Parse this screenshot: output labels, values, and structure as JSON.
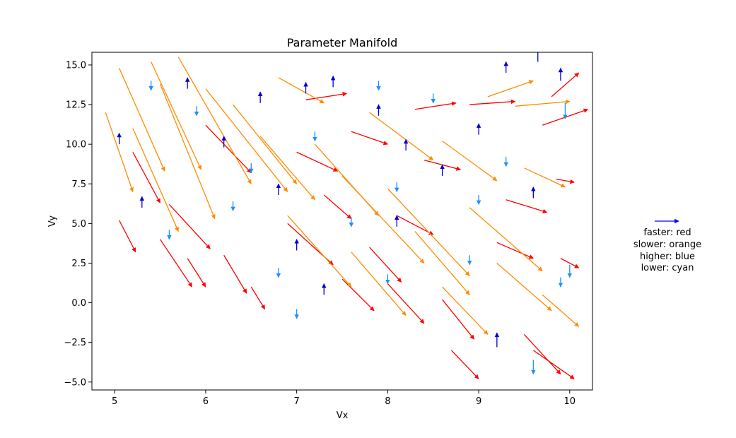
{
  "chart_data": {
    "type": "quiver",
    "title": "Parameter Manifold",
    "xlabel": "Vx",
    "ylabel": "Vy",
    "xlim": [
      4.75,
      10.25
    ],
    "ylim": [
      -5.5,
      15.8
    ],
    "xticks": [
      5,
      6,
      7,
      8,
      9,
      10
    ],
    "yticks": [
      -5.0,
      -2.5,
      0.0,
      2.5,
      5.0,
      7.5,
      10.0,
      12.5,
      15.0
    ],
    "xtick_labels": [
      "5",
      "6",
      "7",
      "8",
      "9",
      "10"
    ],
    "ytick_labels": [
      "−5.0",
      "−2.5",
      "0.0",
      "2.5",
      "5.0",
      "7.5",
      "10.0",
      "12.5",
      "15.0"
    ],
    "grid": false,
    "legend_placement": "right",
    "series_colors": {
      "faster": "#ff0000",
      "slower": "#ff8c00",
      "higher": "#0000cd",
      "lower": "#1e90ff"
    },
    "legend": {
      "arrow_color": "#0000ff",
      "lines": [
        "faster: red",
        "slower: orange",
        "higher: blue",
        "lower: cyan"
      ]
    },
    "field_note": "Dense vector field on a roughly uniform grid over Vx 5–10, Vy −5–15; arrows in the 'faster'/'slower' families point down-right with slope about −2 to −3 and lengths up to ~0.5 in Vx; 'higher'/'lower' arrows are short vertical arrows pointing up/down.",
    "series": [
      {
        "name": "faster: red",
        "color": "#ff0000",
        "arrows": [
          {
            "x": 5.05,
            "y": 5.2,
            "u": 0.18,
            "v": -2.0
          },
          {
            "x": 5.2,
            "y": 9.5,
            "u": 0.3,
            "v": -3.2
          },
          {
            "x": 5.5,
            "y": 4.0,
            "u": 0.35,
            "v": -3.0
          },
          {
            "x": 5.8,
            "y": 2.8,
            "u": 0.2,
            "v": -1.8
          },
          {
            "x": 6.2,
            "y": 3.0,
            "u": 0.25,
            "v": -2.4
          },
          {
            "x": 6.5,
            "y": 1.0,
            "u": 0.15,
            "v": -1.4
          },
          {
            "x": 7.1,
            "y": 12.8,
            "u": 0.45,
            "v": 0.4
          },
          {
            "x": 7.3,
            "y": 6.8,
            "u": 0.3,
            "v": -1.5
          },
          {
            "x": 7.6,
            "y": 10.8,
            "u": 0.4,
            "v": -0.8
          },
          {
            "x": 7.8,
            "y": 3.5,
            "u": 0.35,
            "v": -2.2
          },
          {
            "x": 8.1,
            "y": 5.5,
            "u": 0.4,
            "v": -1.2
          },
          {
            "x": 8.4,
            "y": 9.0,
            "u": 0.4,
            "v": -0.6
          },
          {
            "x": 8.6,
            "y": 0.2,
            "u": 0.35,
            "v": -2.5
          },
          {
            "x": 8.9,
            "y": 12.5,
            "u": 0.5,
            "v": 0.2
          },
          {
            "x": 9.2,
            "y": 3.8,
            "u": 0.4,
            "v": -1.0
          },
          {
            "x": 9.5,
            "y": -2.0,
            "u": 0.4,
            "v": -2.5
          },
          {
            "x": 9.7,
            "y": 11.2,
            "u": 0.5,
            "v": 1.0
          },
          {
            "x": 9.8,
            "y": 13.0,
            "u": 0.3,
            "v": 1.5
          },
          {
            "x": 9.85,
            "y": 7.8,
            "u": 0.2,
            "v": -0.2
          },
          {
            "x": 9.6,
            "y": -3.0,
            "u": 0.45,
            "v": -1.8
          },
          {
            "x": 8.7,
            "y": -3.0,
            "u": 0.3,
            "v": -1.8
          },
          {
            "x": 9.9,
            "y": 2.8,
            "u": 0.2,
            "v": -0.6
          },
          {
            "x": 5.6,
            "y": 6.2,
            "u": 0.45,
            "v": -2.8
          },
          {
            "x": 6.9,
            "y": 5.0,
            "u": 0.5,
            "v": -2.6
          },
          {
            "x": 7.5,
            "y": 1.5,
            "u": 0.35,
            "v": -2.0
          },
          {
            "x": 6.0,
            "y": 11.2,
            "u": 0.5,
            "v": -3.0
          },
          {
            "x": 8.3,
            "y": 12.2,
            "u": 0.45,
            "v": 0.4
          },
          {
            "x": 7.0,
            "y": 9.5,
            "u": 0.45,
            "v": -1.2
          },
          {
            "x": 8.0,
            "y": 1.2,
            "u": 0.4,
            "v": -2.5
          },
          {
            "x": 9.3,
            "y": 6.5,
            "u": 0.45,
            "v": -0.8
          }
        ]
      },
      {
        "name": "slower: orange",
        "color": "#ff8c00",
        "arrows": [
          {
            "x": 4.9,
            "y": 12.0,
            "u": 0.3,
            "v": -5.0
          },
          {
            "x": 5.05,
            "y": 14.8,
            "u": 0.5,
            "v": -6.5
          },
          {
            "x": 5.4,
            "y": 15.2,
            "u": 0.55,
            "v": -6.8
          },
          {
            "x": 5.7,
            "y": 15.5,
            "u": 0.8,
            "v": -8.0
          },
          {
            "x": 6.0,
            "y": 13.5,
            "u": 0.9,
            "v": -6.5
          },
          {
            "x": 6.3,
            "y": 12.5,
            "u": 0.7,
            "v": -5.0
          },
          {
            "x": 6.6,
            "y": 10.5,
            "u": 0.6,
            "v": -4.0
          },
          {
            "x": 6.8,
            "y": 14.2,
            "u": 0.5,
            "v": -1.6
          },
          {
            "x": 7.2,
            "y": 10.0,
            "u": 0.7,
            "v": -4.5
          },
          {
            "x": 7.5,
            "y": 8.0,
            "u": 0.9,
            "v": -5.5
          },
          {
            "x": 7.8,
            "y": 12.0,
            "u": 0.7,
            "v": -3.0
          },
          {
            "x": 8.0,
            "y": 7.2,
            "u": 0.9,
            "v": -5.5
          },
          {
            "x": 8.3,
            "y": 4.5,
            "u": 0.6,
            "v": -4.0
          },
          {
            "x": 8.6,
            "y": 10.2,
            "u": 0.6,
            "v": -2.5
          },
          {
            "x": 8.9,
            "y": 6.0,
            "u": 0.8,
            "v": -4.0
          },
          {
            "x": 9.2,
            "y": 2.5,
            "u": 0.6,
            "v": -3.0
          },
          {
            "x": 9.5,
            "y": 8.5,
            "u": 0.45,
            "v": -1.2
          },
          {
            "x": 9.7,
            "y": 0.5,
            "u": 0.4,
            "v": -2.0
          },
          {
            "x": 9.1,
            "y": 13.0,
            "u": 0.5,
            "v": 1.0
          },
          {
            "x": 9.4,
            "y": 12.4,
            "u": 0.6,
            "v": 0.3
          },
          {
            "x": 5.2,
            "y": 11.0,
            "u": 0.5,
            "v": -6.5
          },
          {
            "x": 5.5,
            "y": 13.8,
            "u": 0.6,
            "v": -8.5
          },
          {
            "x": 6.9,
            "y": 5.5,
            "u": 0.7,
            "v": -4.5
          },
          {
            "x": 7.6,
            "y": 3.2,
            "u": 0.6,
            "v": -4.0
          },
          {
            "x": 8.6,
            "y": 1.0,
            "u": 0.5,
            "v": -3.0
          }
        ]
      },
      {
        "name": "higher: blue",
        "color": "#0000cd",
        "arrows": [
          {
            "x": 5.05,
            "y": 10.0,
            "u": 0,
            "v": 0.7
          },
          {
            "x": 5.3,
            "y": 6.0,
            "u": 0,
            "v": 0.7
          },
          {
            "x": 5.8,
            "y": 13.5,
            "u": 0,
            "v": 0.7
          },
          {
            "x": 6.2,
            "y": 9.8,
            "u": 0,
            "v": 0.7
          },
          {
            "x": 6.6,
            "y": 12.6,
            "u": 0,
            "v": 0.7
          },
          {
            "x": 7.0,
            "y": 3.3,
            "u": 0,
            "v": 0.7
          },
          {
            "x": 7.1,
            "y": 13.2,
            "u": 0,
            "v": 0.7
          },
          {
            "x": 7.4,
            "y": 13.6,
            "u": 0,
            "v": 0.7
          },
          {
            "x": 7.9,
            "y": 11.8,
            "u": 0,
            "v": 0.7
          },
          {
            "x": 8.2,
            "y": 9.6,
            "u": 0,
            "v": 0.7
          },
          {
            "x": 8.6,
            "y": 8.0,
            "u": 0,
            "v": 0.7
          },
          {
            "x": 9.0,
            "y": 10.6,
            "u": 0,
            "v": 0.7
          },
          {
            "x": 9.3,
            "y": 14.5,
            "u": 0,
            "v": 0.7
          },
          {
            "x": 9.65,
            "y": 15.2,
            "u": 0,
            "v": 0.9
          },
          {
            "x": 9.9,
            "y": 14.0,
            "u": 0,
            "v": 0.8
          },
          {
            "x": 9.2,
            "y": -2.8,
            "u": 0,
            "v": 0.9
          },
          {
            "x": 7.3,
            "y": 0.5,
            "u": 0,
            "v": 0.7
          },
          {
            "x": 8.1,
            "y": 4.8,
            "u": 0,
            "v": 0.7
          },
          {
            "x": 6.8,
            "y": 6.8,
            "u": 0,
            "v": 0.7
          },
          {
            "x": 9.6,
            "y": 6.6,
            "u": 0,
            "v": 0.7
          }
        ]
      },
      {
        "name": "lower: cyan",
        "color": "#1e90ff",
        "arrows": [
          {
            "x": 5.4,
            "y": 14.0,
            "u": 0,
            "v": -0.6
          },
          {
            "x": 5.9,
            "y": 12.4,
            "u": 0,
            "v": -0.6
          },
          {
            "x": 6.3,
            "y": 6.4,
            "u": 0,
            "v": -0.6
          },
          {
            "x": 6.8,
            "y": 2.2,
            "u": 0,
            "v": -0.6
          },
          {
            "x": 7.2,
            "y": 10.8,
            "u": 0,
            "v": -0.6
          },
          {
            "x": 7.6,
            "y": 5.4,
            "u": 0,
            "v": -0.6
          },
          {
            "x": 8.1,
            "y": 7.6,
            "u": 0,
            "v": -0.6
          },
          {
            "x": 8.5,
            "y": 13.2,
            "u": 0,
            "v": -0.6
          },
          {
            "x": 8.9,
            "y": 3.0,
            "u": 0,
            "v": -0.6
          },
          {
            "x": 9.3,
            "y": 9.2,
            "u": 0,
            "v": -0.6
          },
          {
            "x": 9.6,
            "y": -3.6,
            "u": 0,
            "v": -0.9
          },
          {
            "x": 9.9,
            "y": 1.6,
            "u": 0,
            "v": -0.6
          },
          {
            "x": 10.0,
            "y": 2.4,
            "u": 0,
            "v": -0.8
          },
          {
            "x": 9.95,
            "y": 12.6,
            "u": 0,
            "v": -1.0
          },
          {
            "x": 8.0,
            "y": 1.8,
            "u": 0,
            "v": -0.6
          },
          {
            "x": 6.5,
            "y": 8.8,
            "u": 0,
            "v": -0.6
          },
          {
            "x": 5.6,
            "y": 4.6,
            "u": 0,
            "v": -0.6
          },
          {
            "x": 7.9,
            "y": 14.0,
            "u": 0,
            "v": -0.6
          },
          {
            "x": 9.0,
            "y": 6.8,
            "u": 0,
            "v": -0.6
          },
          {
            "x": 7.0,
            "y": -0.4,
            "u": 0,
            "v": -0.6
          }
        ]
      }
    ]
  }
}
